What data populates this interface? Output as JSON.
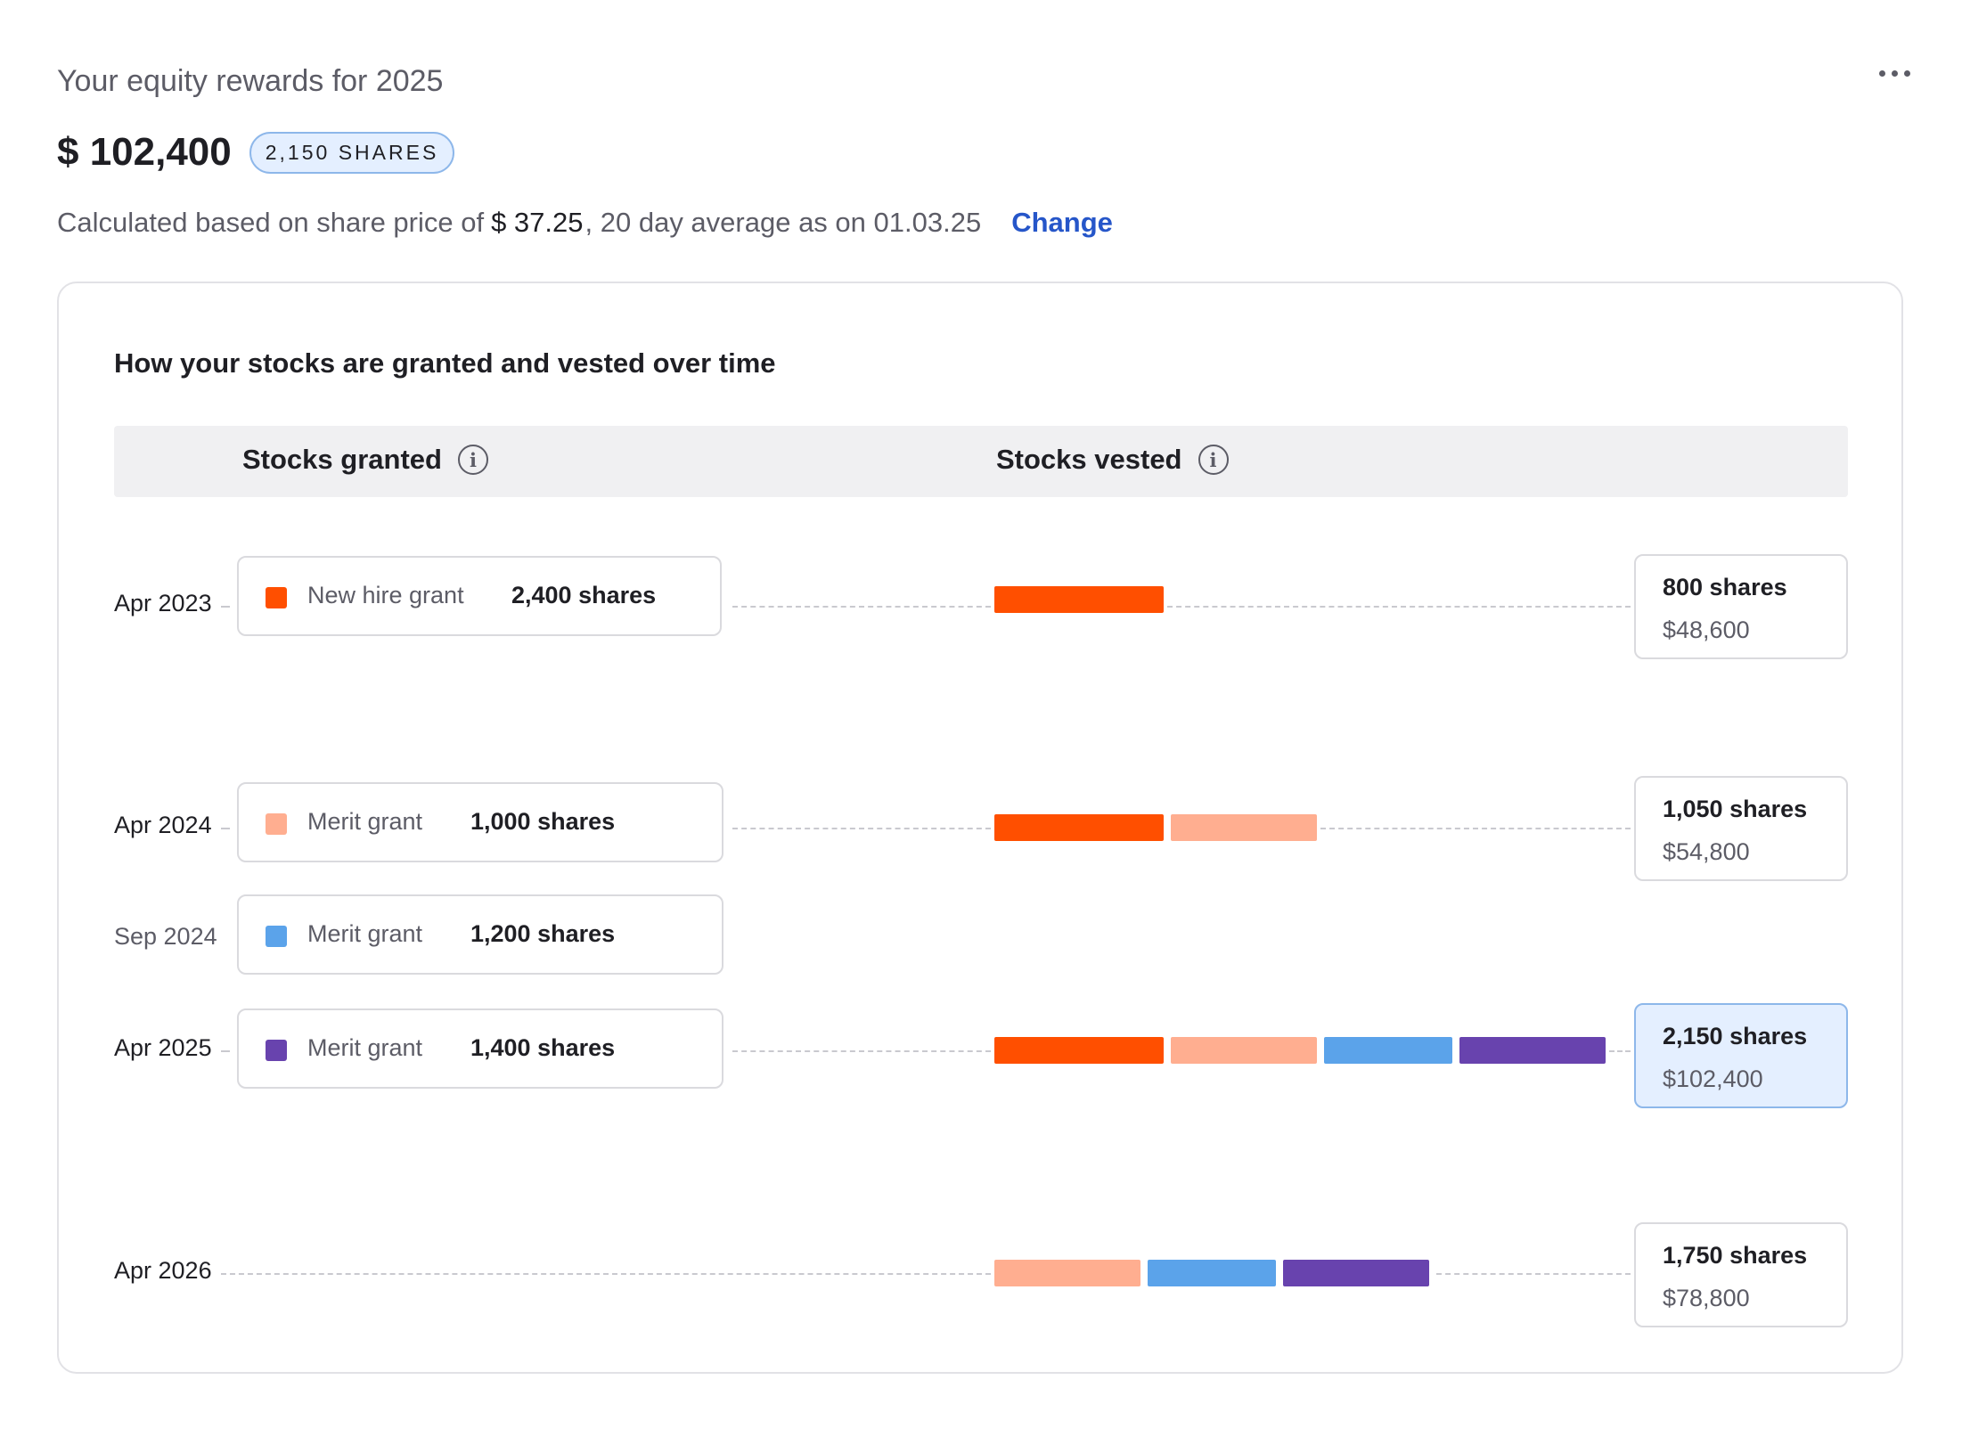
{
  "header": {
    "title": "Your equity rewards for 2025",
    "amount": "$ 102,400",
    "shares_badge": "2,150 SHARES",
    "calc_prefix": "Calculated based on share price of",
    "share_price": "$ 37.25",
    "calc_suffix": ", 20 day average as on 01.03.25",
    "change_label": "Change"
  },
  "panel": {
    "title": "How your stocks are granted and vested over time",
    "col_granted": "Stocks granted",
    "col_vested": "Stocks vested"
  },
  "colors": {
    "new_hire": "#FF4F00",
    "merit_2024_apr": "#FFAE90",
    "merit_2024_sep": "#5BA3EA",
    "merit_2025": "#6843AE"
  },
  "timeline": [
    {
      "date": "Apr 2023",
      "grant": {
        "name": "New hire grant",
        "shares": "2,400 shares",
        "color": "#FF4F00"
      },
      "vest": {
        "shares": "800 shares",
        "value": "$48,600",
        "active": false
      }
    },
    {
      "date": "Apr 2024",
      "grant": {
        "name": "Merit grant",
        "shares": "1,000 shares",
        "color": "#FFAE90"
      },
      "vest": {
        "shares": "1,050 shares",
        "value": "$54,800",
        "active": false
      }
    },
    {
      "date": "Sep 2024",
      "grant": {
        "name": "Merit grant",
        "shares": "1,200 shares",
        "color": "#5BA3EA"
      }
    },
    {
      "date": "Apr 2025",
      "grant": {
        "name": "Merit grant",
        "shares": "1,400 shares",
        "color": "#6843AE"
      },
      "vest": {
        "shares": "2,150 shares",
        "value": "$102,400",
        "active": true
      }
    },
    {
      "date": "Apr 2026",
      "vest": {
        "shares": "1,750 shares",
        "value": "$78,800",
        "active": false
      }
    }
  ]
}
